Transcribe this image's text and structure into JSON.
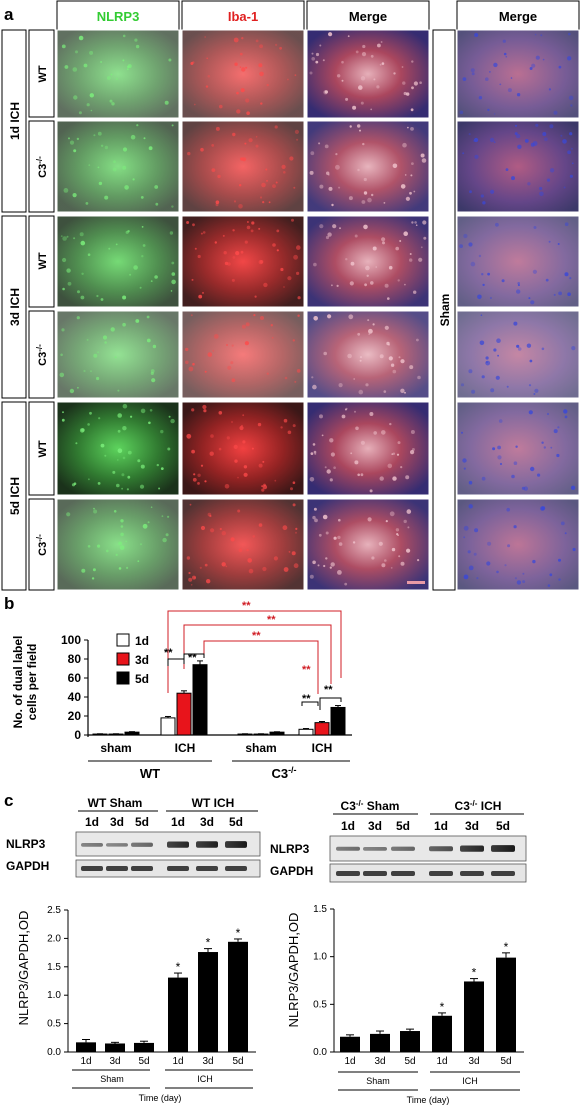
{
  "panel_a": {
    "letter": "a",
    "column_headers": [
      "NLRP3",
      "Iba-1",
      "Merge",
      "Merge"
    ],
    "header_colors": [
      "#33cc33",
      "#e02020",
      "#000000",
      "#000000"
    ],
    "time_groups": [
      "1d ICH",
      "3d ICH",
      "5d ICH"
    ],
    "genotypes": [
      "WT",
      "C3",
      "-/-"
    ],
    "sham_label": "Sham",
    "image_rows": [
      {
        "nlrp3": 0.35,
        "iba": 0.45,
        "merge": 0.8,
        "sham": 0.5
      },
      {
        "nlrp3": 0.45,
        "iba": 0.55,
        "merge": 0.7,
        "sham": 0.7
      },
      {
        "nlrp3": 0.6,
        "iba": 0.8,
        "merge": 0.75,
        "sham": 0.4
      },
      {
        "nlrp3": 0.3,
        "iba": 0.35,
        "merge": 0.55,
        "sham": 0.3
      },
      {
        "nlrp3": 0.85,
        "iba": 0.85,
        "merge": 0.8,
        "sham": 0.4
      },
      {
        "nlrp3": 0.4,
        "iba": 0.65,
        "merge": 0.75,
        "sham": 0.45
      }
    ]
  },
  "panel_b": {
    "letter": "b",
    "ylabel_line1": "No. of dual label",
    "ylabel_line2": "cells per field",
    "yticks": [
      "0",
      "20",
      "40",
      "60",
      "80",
      "100"
    ],
    "sig_mark": "**",
    "group_labels": [
      "sham",
      "ICH",
      "sham",
      "ICH"
    ],
    "genotype_labels": [
      "WT",
      "C3"
    ],
    "genotype_superscript": "-/-"
  },
  "panel_c": {
    "letter": "c",
    "wt_blot": {
      "headers": [
        "WT Sham",
        "WT ICH"
      ],
      "lanes": [
        "1d",
        "3d",
        "5d",
        "1d",
        "3d",
        "5d"
      ],
      "rows": [
        "NLRP3",
        "GAPDH"
      ]
    },
    "c3_blot": {
      "headers": [
        "C3",
        "-/-",
        " Sham",
        "C3",
        "-/-",
        " ICH"
      ],
      "lanes": [
        "1d",
        "3d",
        "5d",
        "1d",
        "3d",
        "5d"
      ],
      "rows": [
        "NLRP3",
        "GAPDH"
      ]
    },
    "wt_chart": {
      "ylabel": "NLRP3/GAPDH,OD",
      "yticks": [
        "0.0",
        "0.5",
        "1.0",
        "1.5",
        "2.0",
        "2.5"
      ],
      "xticks": [
        "1d",
        "3d",
        "5d",
        "1d",
        "3d",
        "5d"
      ],
      "groups": [
        "Sham",
        "ICH"
      ],
      "xlabel": "Time (day)",
      "star": "*"
    },
    "c3_chart": {
      "ylabel": "NLRP3/GAPDH,OD",
      "yticks": [
        "0.0",
        "0.5",
        "1.0",
        "1.5"
      ],
      "xticks": [
        "1d",
        "3d",
        "5d",
        "1d",
        "3d",
        "5d"
      ],
      "groups": [
        "Sham",
        "ICH"
      ],
      "xlabel": "Time (day)",
      "star": "*"
    }
  },
  "chart_data": [
    {
      "type": "bar",
      "categories": [
        "WT sham",
        "WT ICH",
        "C3-/- sham",
        "C3-/- ICH"
      ],
      "series": [
        {
          "name": "1d",
          "values": [
            1,
            18,
            1,
            6
          ],
          "errors": [
            0.3,
            1.5,
            0.3,
            0.8
          ],
          "color": "#ffffff"
        },
        {
          "name": "3d",
          "values": [
            1,
            44,
            1,
            13
          ],
          "errors": [
            0.3,
            2.5,
            0.3,
            1.2
          ],
          "color": "#e8141b"
        },
        {
          "name": "5d",
          "values": [
            3,
            74,
            3,
            29
          ],
          "errors": [
            0.5,
            4.0,
            0.4,
            2.0
          ],
          "color": "#000000"
        }
      ],
      "ylabel": "No. of dual label cells per field",
      "ylim": [
        0,
        100
      ],
      "legend": "top-left"
    },
    {
      "type": "bar",
      "categories": [
        "1d",
        "3d",
        "5d",
        "1d",
        "3d",
        "5d"
      ],
      "groups": [
        "Sham",
        "Sham",
        "Sham",
        "ICH",
        "ICH",
        "ICH"
      ],
      "values": [
        0.17,
        0.15,
        0.16,
        1.31,
        1.76,
        1.94
      ],
      "errors": [
        0.05,
        0.02,
        0.03,
        0.08,
        0.06,
        0.05
      ],
      "significant": [
        false,
        false,
        false,
        true,
        true,
        true
      ],
      "ylabel": "NLRP3/GAPDH,OD",
      "xlabel": "Time (day)",
      "ylim": [
        0,
        2.5
      ]
    },
    {
      "type": "bar",
      "categories": [
        "1d",
        "3d",
        "5d",
        "1d",
        "3d",
        "5d"
      ],
      "groups": [
        "Sham",
        "Sham",
        "Sham",
        "ICH",
        "ICH",
        "ICH"
      ],
      "values": [
        0.16,
        0.19,
        0.22,
        0.38,
        0.74,
        0.99
      ],
      "errors": [
        0.02,
        0.03,
        0.02,
        0.03,
        0.03,
        0.05
      ],
      "significant": [
        false,
        false,
        false,
        true,
        true,
        true
      ],
      "ylabel": "NLRP3/GAPDH,OD",
      "xlabel": "Time (day)",
      "ylim": [
        0,
        1.5
      ]
    }
  ]
}
